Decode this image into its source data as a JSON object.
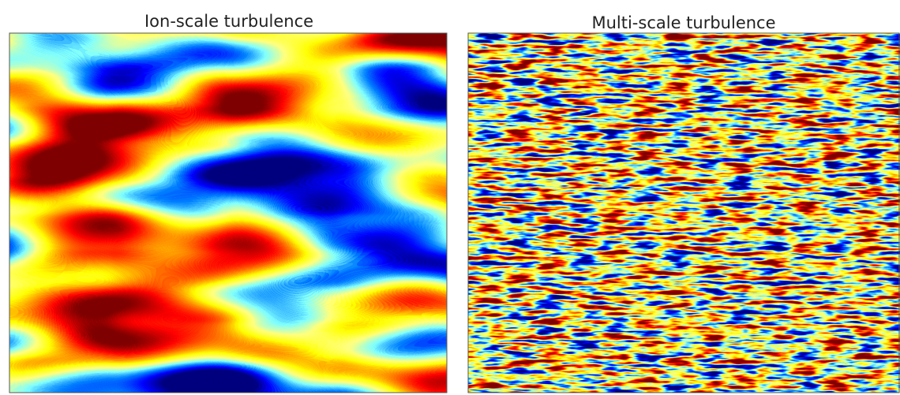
{
  "panels": [
    {
      "title": "Ion-scale turbulence"
    },
    {
      "title": "Multi-scale turbulence"
    }
  ]
}
